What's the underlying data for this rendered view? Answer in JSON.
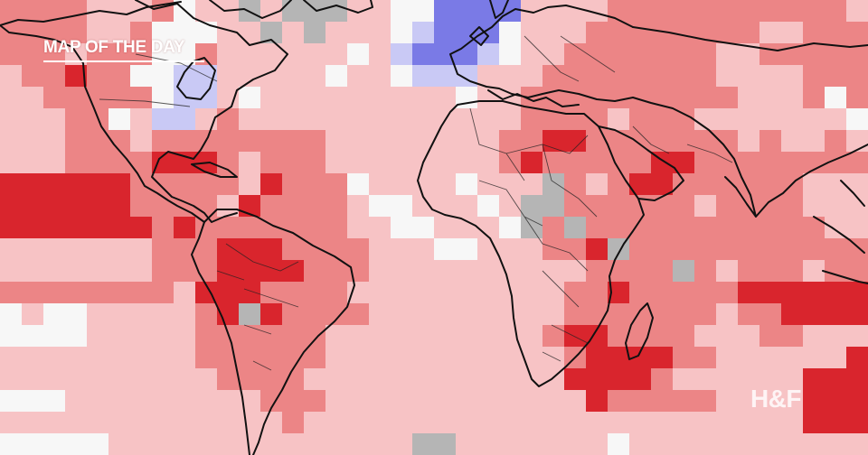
{
  "caption": {
    "title": "MAP OF THE DAY"
  },
  "watermark": {
    "logo": "H&F"
  },
  "legend_colors": {
    "strong_warm": "#d9252d",
    "warm": "#ec8586",
    "slight_warm": "#f7c3c5",
    "neutral": "#f7f7f7",
    "slight_cool": "#c9c9f5",
    "cool": "#7a7ae6",
    "no_data": "#b5b5b5",
    "coastline": "#111111"
  }
}
